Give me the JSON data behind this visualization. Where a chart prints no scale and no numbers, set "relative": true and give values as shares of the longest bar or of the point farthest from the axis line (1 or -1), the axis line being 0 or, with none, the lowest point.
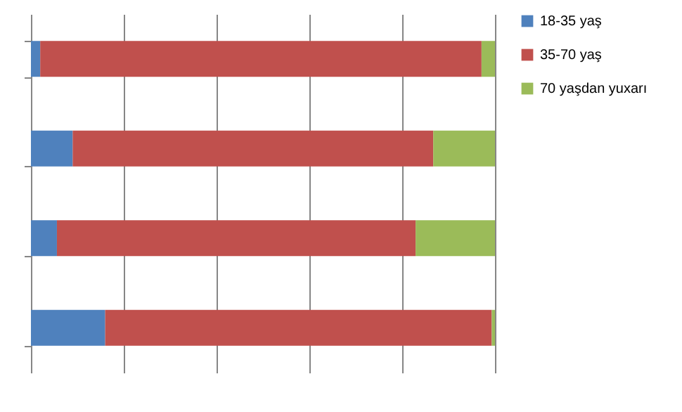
{
  "chart_data": {
    "type": "bar",
    "orientation": "horizontal",
    "stacked": true,
    "relative": true,
    "categories": [
      null,
      null,
      null,
      null
    ],
    "series": [
      {
        "name": "18-35 yaş",
        "color": "#4f81bd",
        "values": [
          0.02,
          0.09,
          0.056,
          0.16
        ]
      },
      {
        "name": "35-70 yaş",
        "color": "#c0504d",
        "values": [
          0.951,
          0.777,
          0.773,
          0.833
        ]
      },
      {
        "name": "70 yaşdan yuxarı",
        "color": "#9bbb59",
        "values": [
          0.029,
          0.133,
          0.171,
          0.007
        ]
      }
    ],
    "grid": "x",
    "legend": "right"
  }
}
